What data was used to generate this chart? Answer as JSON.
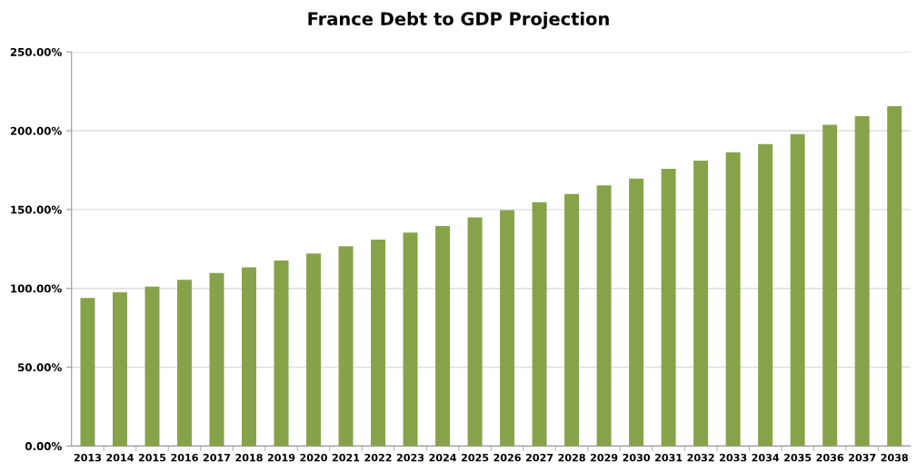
{
  "chart_data": {
    "type": "bar",
    "title": "France Debt to GDP Projection",
    "categories": [
      "2013",
      "2014",
      "2015",
      "2016",
      "2017",
      "2018",
      "2019",
      "2020",
      "2021",
      "2022",
      "2023",
      "2024",
      "2025",
      "2026",
      "2027",
      "2028",
      "2029",
      "2030",
      "2031",
      "2032",
      "2033",
      "2034",
      "2035",
      "2036",
      "2037",
      "2038"
    ],
    "values": [
      94.0,
      97.5,
      101.1,
      105.5,
      109.8,
      113.3,
      117.7,
      122.1,
      126.7,
      131.0,
      135.4,
      139.6,
      145.0,
      149.7,
      154.7,
      159.9,
      165.3,
      169.7,
      175.8,
      181.0,
      186.4,
      191.6,
      197.8,
      203.8,
      209.2,
      215.5
    ],
    "color": "#87a34a",
    "ylim": [
      0,
      250
    ],
    "yticks": [
      {
        "value": 0,
        "label": "0.00%"
      },
      {
        "value": 50,
        "label": "50.00%"
      },
      {
        "value": 100,
        "label": "100.00%"
      },
      {
        "value": 150,
        "label": "150.00%"
      },
      {
        "value": 200,
        "label": "200.00%"
      },
      {
        "value": 250,
        "label": "250.00%"
      }
    ],
    "grid": "y"
  }
}
